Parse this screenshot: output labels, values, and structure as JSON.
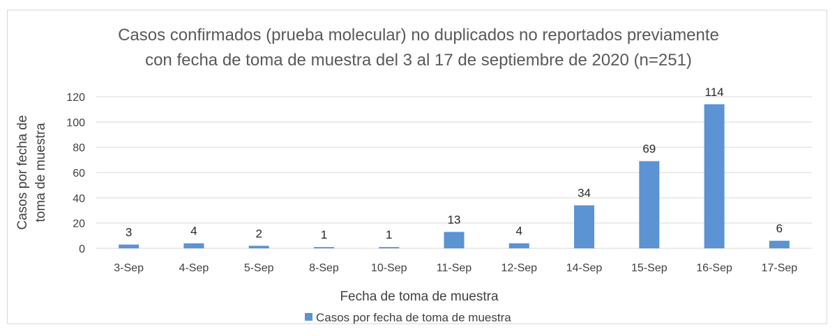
{
  "chart_data": {
    "type": "bar",
    "title_lines": [
      "Casos confirmados (prueba molecular) no duplicados no reportados previamente",
      "con fecha de toma de muestra del 3 al 17 de septiembre de 2020 (n=251)"
    ],
    "categories": [
      "3-Sep",
      "4-Sep",
      "5-Sep",
      "8-Sep",
      "10-Sep",
      "11-Sep",
      "12-Sep",
      "14-Sep",
      "15-Sep",
      "16-Sep",
      "17-Sep"
    ],
    "series": [
      {
        "name": "Casos por fecha de toma de muestra",
        "values": [
          3,
          4,
          2,
          1,
          1,
          13,
          4,
          34,
          69,
          114,
          6
        ],
        "color": "#5b93d3"
      }
    ],
    "xlabel": "Fecha de toma de muestra",
    "ylabel_lines": [
      "Casos por fecha de",
      "toma de muestra"
    ],
    "ylim": [
      0,
      120
    ],
    "yticks": [
      0,
      20,
      40,
      60,
      80,
      100,
      120
    ],
    "grid": true,
    "legend_position": "bottom",
    "data_labels": true
  }
}
